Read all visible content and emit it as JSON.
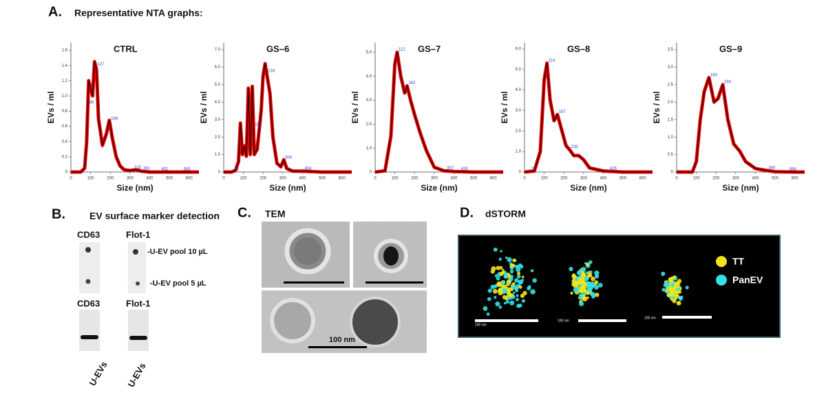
{
  "figure": {
    "panel_a": {
      "letter": "A.",
      "title": "Representative NTA graphs:"
    },
    "panel_b": {
      "letter": "B.",
      "title": "EV surface marker detection",
      "dot_blot_labels": [
        "CD63",
        "Flot-1"
      ],
      "dot_labels": [
        "-U-EV pool 10 µL",
        "-U-EV pool 5 µL"
      ],
      "western_labels": [
        "CD63",
        "Flot-1"
      ],
      "sample_labels": [
        "U-EVs",
        "U-EVs"
      ]
    },
    "panel_c": {
      "letter": "C.",
      "title": "TEM",
      "scale_label": "100 nm"
    },
    "panel_d": {
      "letter": "D.",
      "title": "dSTORM",
      "legend": [
        {
          "name": "TT",
          "color": "#f2e41a"
        },
        {
          "name": "PanEV",
          "color": "#33e0e6"
        }
      ],
      "scale_labels": [
        "100 nm",
        "100 nm",
        "100 nm"
      ]
    }
  },
  "chart_data": [
    {
      "type": "line",
      "title": "CTRL",
      "xlabel": "Size (nm)",
      "ylabel": "EVs / ml",
      "color": "#000000",
      "band_color": "#e00000",
      "x": [
        0,
        50,
        70,
        80,
        90,
        100,
        110,
        120,
        130,
        140,
        160,
        180,
        195,
        210,
        230,
        250,
        270,
        300,
        330,
        360,
        400,
        500,
        600,
        650
      ],
      "values": [
        0,
        0,
        0.05,
        0.4,
        1.2,
        1.1,
        1.0,
        1.45,
        1.35,
        0.7,
        0.35,
        0.5,
        0.68,
        0.45,
        0.2,
        0.08,
        0.03,
        0.02,
        0.03,
        0.01,
        0,
        0,
        0,
        0
      ],
      "peaks": [
        86,
        127,
        196,
        315,
        361,
        452,
        565
      ],
      "xlim": [
        0,
        650
      ],
      "xticks": [
        0,
        100,
        200,
        300,
        400,
        500,
        600
      ],
      "ylim": [
        0,
        1.7
      ],
      "yticks": [
        0,
        0.2,
        0.4,
        0.6,
        0.8,
        {
          "value": 1,
          "label": "1.0"
        },
        1.2,
        1.4,
        1.6
      ]
    },
    {
      "type": "line",
      "title": "GS–6",
      "xlabel": "Size (nm)",
      "ylabel": "EVs / ml",
      "color": "#000000",
      "band_color": "#e00000",
      "x": [
        0,
        40,
        60,
        75,
        85,
        95,
        105,
        115,
        125,
        135,
        145,
        155,
        170,
        190,
        200,
        210,
        220,
        235,
        250,
        270,
        290,
        305,
        320,
        350,
        400,
        500,
        600,
        650
      ],
      "values": [
        0,
        0,
        0.1,
        0.6,
        2.8,
        1.0,
        1.5,
        0.9,
        4.8,
        1.0,
        4.9,
        1.0,
        1.3,
        3.5,
        5.5,
        6.2,
        5.5,
        4.5,
        2.0,
        0.5,
        0.3,
        0.7,
        0.2,
        0.05,
        0.05,
        0,
        0,
        0
      ],
      "peaks": [
        45,
        151,
        218,
        304,
        404
      ],
      "xlim": [
        0,
        650
      ],
      "xticks": [
        0,
        100,
        200,
        300,
        400,
        500,
        600
      ],
      "ylim": [
        0,
        7.4
      ],
      "yticks": [
        0,
        {
          "value": 1,
          "label": "1.0"
        },
        {
          "value": 2,
          "label": "2.0"
        },
        {
          "value": 3,
          "label": "3.0"
        },
        {
          "value": 4,
          "label": "4.0"
        },
        {
          "value": 5,
          "label": "5.0"
        },
        {
          "value": 6,
          "label": "6.0"
        },
        {
          "value": 7,
          "label": "7.0"
        }
      ]
    },
    {
      "type": "line",
      "title": "GS–7",
      "xlabel": "Size (nm)",
      "ylabel": "EVs / ml",
      "color": "#000000",
      "band_color": "#e00000",
      "x": [
        0,
        50,
        80,
        100,
        112,
        130,
        150,
        162,
        180,
        200,
        230,
        260,
        300,
        350,
        400,
        500,
        600,
        650
      ],
      "values": [
        0,
        0.05,
        1.5,
        4.5,
        5.0,
        4.0,
        3.3,
        3.6,
        3.0,
        2.4,
        1.6,
        0.9,
        0.2,
        0.05,
        0.02,
        0,
        0,
        0
      ],
      "peaks": [
        112,
        162,
        357,
        429
      ],
      "xlim": [
        0,
        650
      ],
      "xticks": [
        0,
        100,
        200,
        300,
        400,
        500,
        600
      ],
      "ylim": [
        0,
        5.4
      ],
      "yticks": [
        0,
        {
          "value": 1,
          "label": "1.0"
        },
        {
          "value": 2,
          "label": "2.0"
        },
        {
          "value": 3,
          "label": "3.0"
        },
        {
          "value": 4,
          "label": "4.0"
        },
        {
          "value": 5,
          "label": "5.0"
        }
      ]
    },
    {
      "type": "line",
      "title": "GS–8",
      "xlabel": "Size (nm)",
      "ylabel": "EVs / ml",
      "color": "#000000",
      "band_color": "#e00000",
      "x": [
        0,
        50,
        80,
        100,
        114,
        130,
        150,
        167,
        190,
        210,
        228,
        250,
        275,
        300,
        330,
        400,
        500,
        600,
        650
      ],
      "values": [
        0,
        0.05,
        1.0,
        4.5,
        5.3,
        3.5,
        2.5,
        2.8,
        2.0,
        1.3,
        1.1,
        0.8,
        0.8,
        0.6,
        0.2,
        0.05,
        0,
        0,
        0
      ],
      "peaks": [
        27,
        114,
        167,
        228,
        426
      ],
      "xlim": [
        0,
        650
      ],
      "xticks": [
        0,
        100,
        200,
        300,
        400,
        500,
        600
      ],
      "ylim": [
        0,
        6.3
      ],
      "yticks": [
        0,
        {
          "value": 1,
          "label": "1.0"
        },
        {
          "value": 2,
          "label": "2.0"
        },
        {
          "value": 3,
          "label": "3.0"
        },
        {
          "value": 4,
          "label": "4.0"
        },
        {
          "value": 5,
          "label": "5.0"
        },
        {
          "value": 6,
          "label": "6.0"
        }
      ]
    },
    {
      "type": "line",
      "title": "GS–9",
      "xlabel": "Size (nm)",
      "ylabel": "EVs / ml",
      "color": "#000000",
      "band_color": "#e00000",
      "x": [
        0,
        80,
        100,
        120,
        140,
        164,
        190,
        210,
        234,
        260,
        290,
        320,
        350,
        400,
        450,
        500,
        600,
        650
      ],
      "values": [
        0,
        0,
        0.3,
        1.5,
        2.3,
        2.7,
        2.0,
        2.1,
        2.5,
        1.5,
        0.8,
        0.6,
        0.3,
        0.1,
        0.05,
        0.01,
        0,
        0
      ],
      "peaks": [
        164,
        234,
        460,
        566
      ],
      "xlim": [
        0,
        650
      ],
      "xticks": [
        0,
        100,
        200,
        300,
        400,
        500,
        600
      ],
      "ylim": [
        0,
        3.7
      ],
      "yticks": [
        0,
        0.5,
        {
          "value": 1,
          "label": "1.0"
        },
        1.5,
        {
          "value": 2,
          "label": "2.0"
        },
        2.5,
        {
          "value": 3,
          "label": "3.0"
        },
        3.5
      ]
    }
  ]
}
